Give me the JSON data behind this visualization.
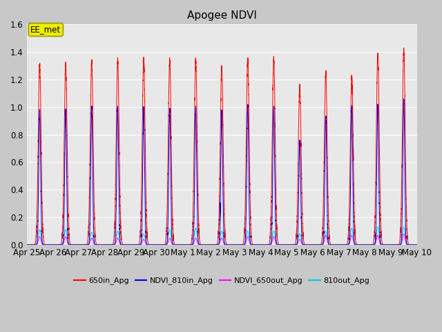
{
  "title": "Apogee NDVI",
  "ylim": [
    0,
    1.6
  ],
  "yticks": [
    0.0,
    0.2,
    0.4,
    0.6,
    0.8,
    1.0,
    1.2,
    1.4,
    1.6
  ],
  "fig_bg_color": "#c8c8c8",
  "plot_bg_color": "#e8e8e8",
  "legend_labels": [
    "650in_Apg",
    "NDVI_810in_Apg",
    "NDVI_650out_Apg",
    "810out_Apg"
  ],
  "legend_colors": [
    "#ff0000",
    "#0000ee",
    "#ff00ff",
    "#00cccc"
  ],
  "annotation_text": "EE_met",
  "annotation_facecolor": "#eeee00",
  "annotation_edgecolor": "#999900",
  "grid_color": "#ffffff",
  "title_fontsize": 11,
  "num_days": 15,
  "peak_positions": [
    0.5,
    1.5,
    2.5,
    3.5,
    4.5,
    5.5,
    6.5,
    7.5,
    8.5,
    9.5,
    10.5,
    11.5,
    12.5,
    13.5,
    14.5
  ],
  "peak_heights_red": [
    1.31,
    1.31,
    1.34,
    1.34,
    1.35,
    1.34,
    1.35,
    1.29,
    1.35,
    1.35,
    1.15,
    1.25,
    1.22,
    1.38,
    1.41
  ],
  "peak_heights_blue": [
    0.98,
    0.98,
    1.0,
    1.0,
    1.0,
    0.98,
    1.0,
    0.97,
    1.01,
    1.0,
    0.75,
    0.93,
    1.0,
    1.01,
    1.05
  ],
  "peak_heights_cyan": [
    0.11,
    0.11,
    0.09,
    0.1,
    0.08,
    0.11,
    0.12,
    0.1,
    0.1,
    0.1,
    0.08,
    0.1,
    0.12,
    0.13,
    0.13
  ],
  "peak_heights_magenta": [
    0.06,
    0.06,
    0.05,
    0.05,
    0.04,
    0.05,
    0.05,
    0.05,
    0.06,
    0.06,
    0.04,
    0.07,
    0.07,
    0.07,
    0.08
  ],
  "day_labels": [
    "Apr 25",
    "Apr 26",
    "Apr 27",
    "Apr 28",
    "Apr 29",
    "Apr 30",
    "May 1",
    "May 2",
    "May 3",
    "May 4",
    "May 5",
    "May 6",
    "May 7",
    "May 8",
    "May 9",
    "May 10"
  ]
}
